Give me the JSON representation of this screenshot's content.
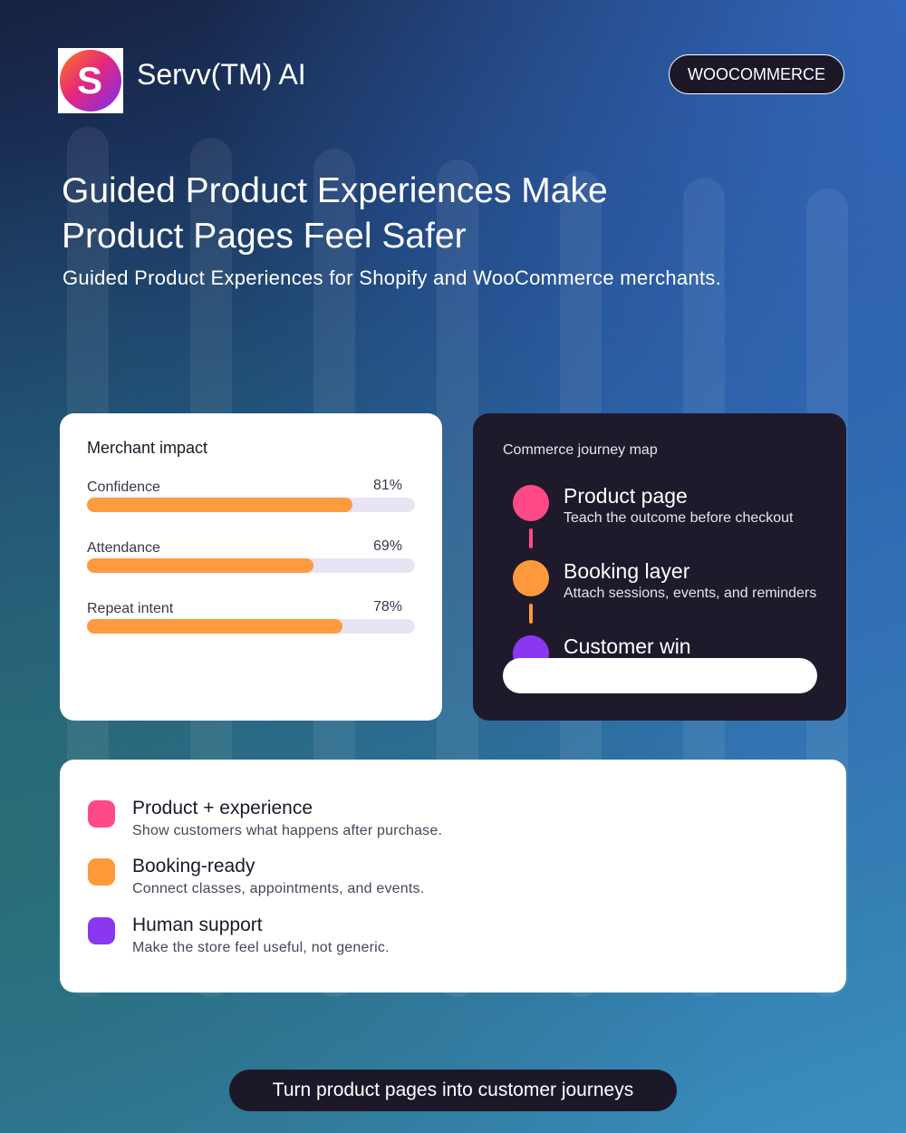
{
  "header": {
    "brand": "Servv(TM) AI",
    "badge": "WOOCOMMERCE",
    "title_lines": [
      "Guided Product Experiences Make",
      "Product Pages Feel Safer"
    ],
    "subtitle": "Guided Product Experiences for Shopify and WooCommerce merchants."
  },
  "impact": {
    "title": "Merchant impact",
    "xlim": [
      0,
      100
    ],
    "labels": [
      "Confidence",
      "Attendance",
      "Repeat intent"
    ],
    "values": [
      81,
      69,
      78
    ],
    "value_labels": [
      "81%",
      "69%",
      "78%"
    ]
  },
  "journey": {
    "title": "Commerce journey map",
    "steps": [
      {
        "title": "Product page",
        "text": "Teach the outcome before checkout"
      },
      {
        "title": "Booking layer",
        "text": "Attach sessions, events, and reminders"
      },
      {
        "title": "Customer win"
      }
    ]
  },
  "features": [
    {
      "title": "Product + experience",
      "text": "Show customers what happens after purchase."
    },
    {
      "title": "Booking-ready",
      "text": "Connect classes, appointments, and events."
    },
    {
      "title": "Human support",
      "text": "Make the store feel useful, not generic."
    }
  ],
  "cta": "Turn product pages into customer journeys"
}
